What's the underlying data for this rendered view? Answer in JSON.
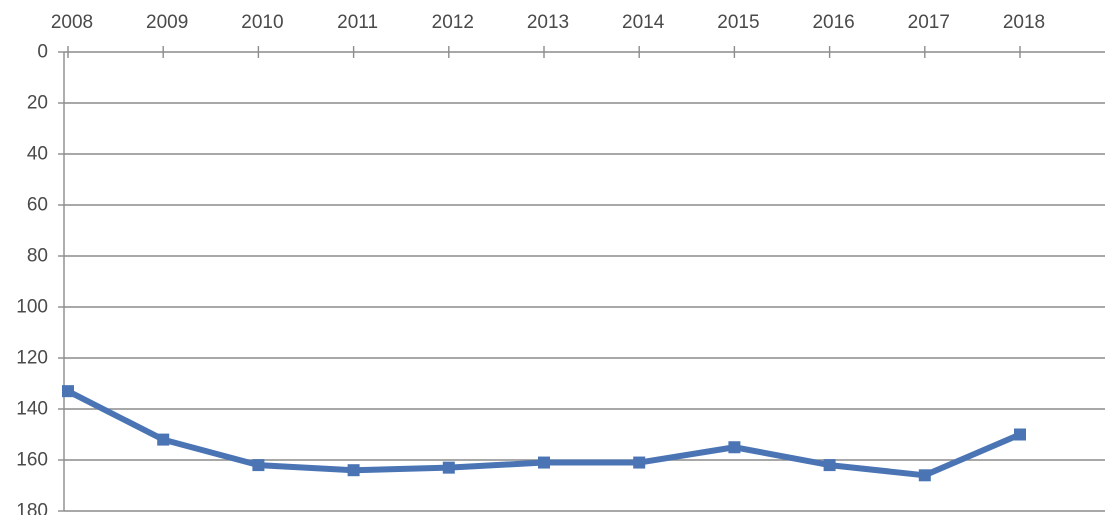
{
  "chart_data": {
    "type": "line",
    "title": "",
    "xlabel": "",
    "ylabel": "",
    "categories": [
      "2008",
      "2009",
      "2010",
      "2011",
      "2012",
      "2013",
      "2014",
      "2015",
      "2016",
      "2017",
      "2018"
    ],
    "series": [
      {
        "values": [
          133,
          152,
          162,
          164,
          163,
          161,
          161,
          155,
          162,
          166,
          150
        ],
        "color": "#4a74b4"
      }
    ],
    "ylim": [
      0,
      180
    ],
    "y_ticks": [
      0,
      20,
      40,
      60,
      80,
      100,
      120,
      140,
      160,
      180
    ],
    "y_axis_inverted": true,
    "x_axis_position": "top",
    "grid": true,
    "marker": "square",
    "legend": "none"
  }
}
